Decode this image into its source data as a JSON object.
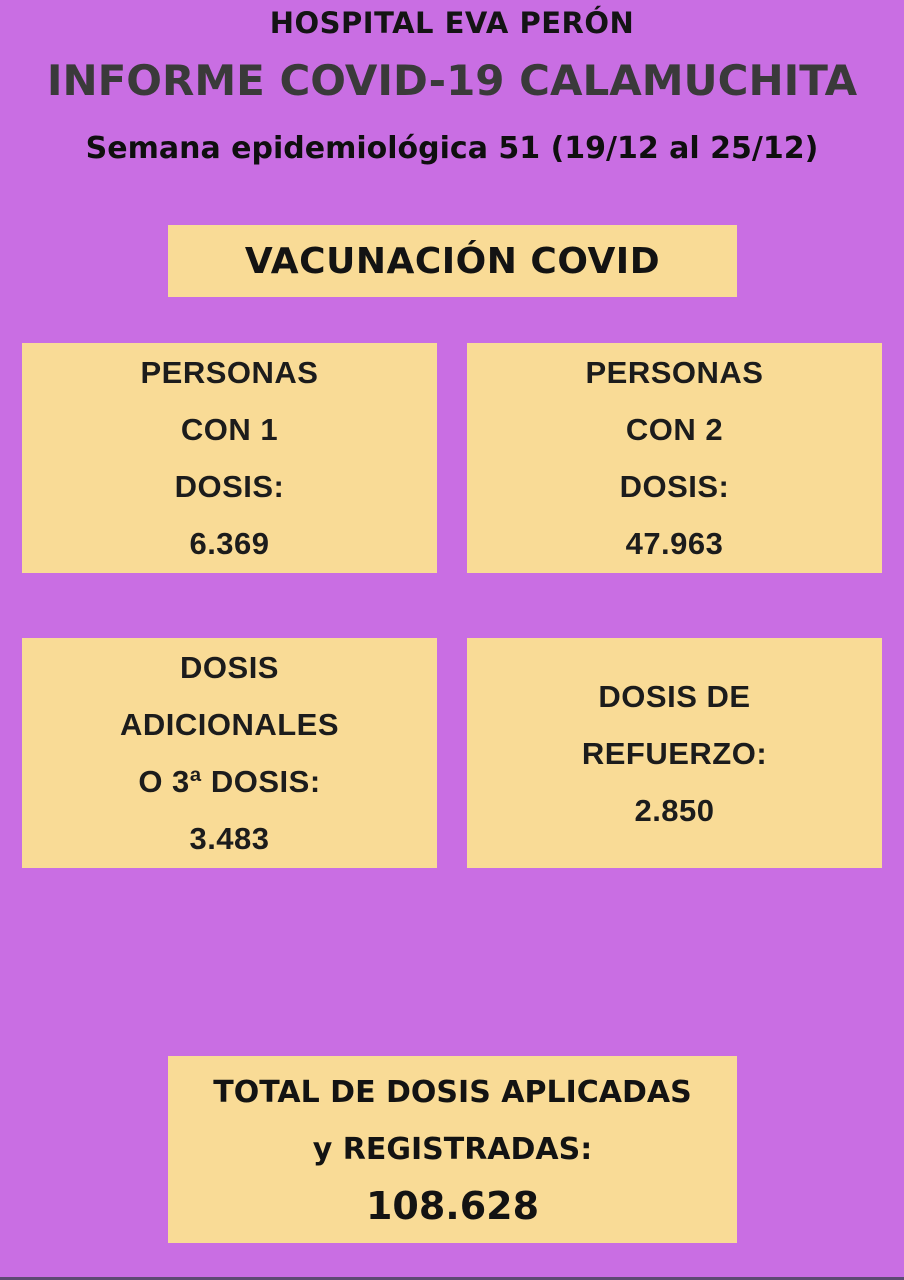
{
  "colors": {
    "background": "#c96ee3",
    "card": "#f9db96",
    "title_text": "#3a3a3a",
    "body_text": "#141414"
  },
  "header": {
    "hospital": "HOSPITAL EVA PERÓN",
    "title": "INFORME COVID-19 CALAMUCHITA",
    "subtitle": "Semana epidemiológica 51 (19/12 al 25/12)"
  },
  "banner": {
    "label": "VACUNACIÓN COVID"
  },
  "stats": [
    {
      "lines": [
        "PERSONAS",
        "CON 1",
        "DOSIS:"
      ],
      "value": "6.369"
    },
    {
      "lines": [
        "PERSONAS",
        "CON 2",
        "DOSIS:"
      ],
      "value": "47.963"
    },
    {
      "lines": [
        "DOSIS",
        "ADICIONALES",
        "O 3ª DOSIS:"
      ],
      "value": "3.483"
    },
    {
      "lines": [
        "DOSIS DE",
        "REFUERZO:"
      ],
      "value": "2.850"
    }
  ],
  "total": {
    "lines": [
      "TOTAL DE DOSIS APLICADAS",
      "y REGISTRADAS:"
    ],
    "value": "108.628"
  }
}
